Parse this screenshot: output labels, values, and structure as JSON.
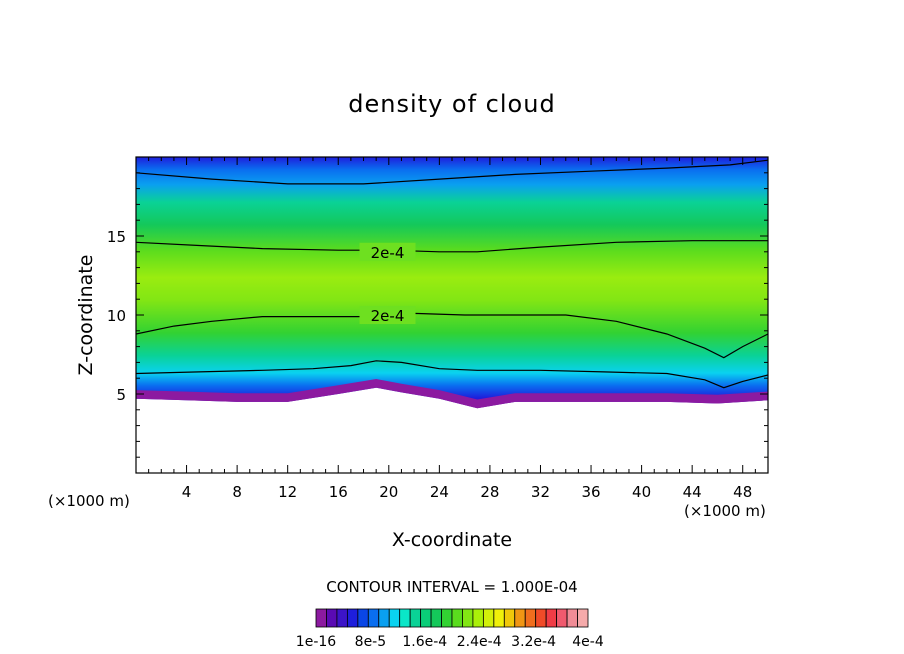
{
  "chart_data": {
    "type": "heatmap",
    "title": "density of cloud",
    "xlabel": "X-coordinate",
    "ylabel": "Z-coordinate",
    "x_unit_left": "(×1000 m)",
    "x_unit_right": "(×1000 m)",
    "xlim": [
      0,
      50
    ],
    "ylim": [
      0,
      20
    ],
    "x_ticks": [
      4,
      8,
      12,
      16,
      20,
      24,
      28,
      32,
      36,
      40,
      44,
      48
    ],
    "y_ticks": [
      5,
      10,
      15
    ],
    "contour_interval_text": "CONTOUR INTERVAL = 1.000E-04",
    "contour_labels": [
      {
        "x": 18.0,
        "y": 14.0,
        "text": "2e-4"
      },
      {
        "x": 18.0,
        "y": 10.0,
        "text": "2e-4"
      }
    ],
    "contours": [
      {
        "level": "upper",
        "points": [
          [
            0,
            19.0
          ],
          [
            6,
            18.6
          ],
          [
            12,
            18.3
          ],
          [
            18,
            18.3
          ],
          [
            24,
            18.6
          ],
          [
            30,
            18.9
          ],
          [
            36,
            19.1
          ],
          [
            42,
            19.3
          ],
          [
            47,
            19.5
          ],
          [
            50,
            19.8
          ]
        ]
      },
      {
        "level": "2e-4 upper",
        "points": [
          [
            0,
            14.6
          ],
          [
            5,
            14.4
          ],
          [
            10,
            14.2
          ],
          [
            16,
            14.1
          ],
          [
            20,
            14.1
          ],
          [
            24,
            14.0
          ],
          [
            27,
            14.0
          ],
          [
            32,
            14.3
          ],
          [
            38,
            14.6
          ],
          [
            44,
            14.7
          ],
          [
            50,
            14.7
          ]
        ]
      },
      {
        "level": "2e-4 lower",
        "points": [
          [
            0,
            8.8
          ],
          [
            3,
            9.3
          ],
          [
            6,
            9.6
          ],
          [
            10,
            9.9
          ],
          [
            14,
            9.9
          ],
          [
            18,
            9.9
          ],
          [
            22,
            10.1
          ],
          [
            26,
            10.0
          ],
          [
            30,
            10.0
          ],
          [
            34,
            10.0
          ],
          [
            38,
            9.6
          ],
          [
            42,
            8.8
          ],
          [
            45,
            7.9
          ],
          [
            46.5,
            7.3
          ],
          [
            48,
            8.0
          ],
          [
            50,
            8.8
          ]
        ]
      },
      {
        "level": "lower",
        "points": [
          [
            0,
            6.3
          ],
          [
            5,
            6.4
          ],
          [
            10,
            6.5
          ],
          [
            14,
            6.6
          ],
          [
            17,
            6.8
          ],
          [
            19,
            7.1
          ],
          [
            21,
            7.0
          ],
          [
            24,
            6.6
          ],
          [
            27,
            6.5
          ],
          [
            32,
            6.5
          ],
          [
            37,
            6.4
          ],
          [
            42,
            6.3
          ],
          [
            45,
            5.9
          ],
          [
            46.5,
            5.4
          ],
          [
            48,
            5.8
          ],
          [
            50,
            6.2
          ]
        ]
      }
    ],
    "cloud_base": [
      [
        0,
        4.7
      ],
      [
        4,
        4.6
      ],
      [
        8,
        4.5
      ],
      [
        12,
        4.5
      ],
      [
        16,
        5.0
      ],
      [
        19,
        5.4
      ],
      [
        21,
        5.1
      ],
      [
        24,
        4.7
      ],
      [
        27,
        4.1
      ],
      [
        30,
        4.5
      ],
      [
        36,
        4.5
      ],
      [
        42,
        4.5
      ],
      [
        46,
        4.4
      ],
      [
        50,
        4.6
      ]
    ],
    "colorbar": {
      "colors": [
        "#8c1aa0",
        "#5a0ab4",
        "#3c14c8",
        "#1e1edc",
        "#0a46e6",
        "#0a6ef0",
        "#0aa0f0",
        "#0ad2f0",
        "#0ae6c8",
        "#0ad296",
        "#0acd78",
        "#14c85a",
        "#32d232",
        "#5adc1e",
        "#82e614",
        "#aaf00a",
        "#d2f00a",
        "#f0f00a",
        "#f0c80a",
        "#f09614",
        "#f06e1e",
        "#f04b28",
        "#f03c46",
        "#f05a6e",
        "#f08c96",
        "#f5aaaa"
      ],
      "labels": [
        "1e-16",
        "8e-5",
        "1.6e-4",
        "2.4e-4",
        "3.2e-4",
        "4e-4"
      ]
    }
  }
}
